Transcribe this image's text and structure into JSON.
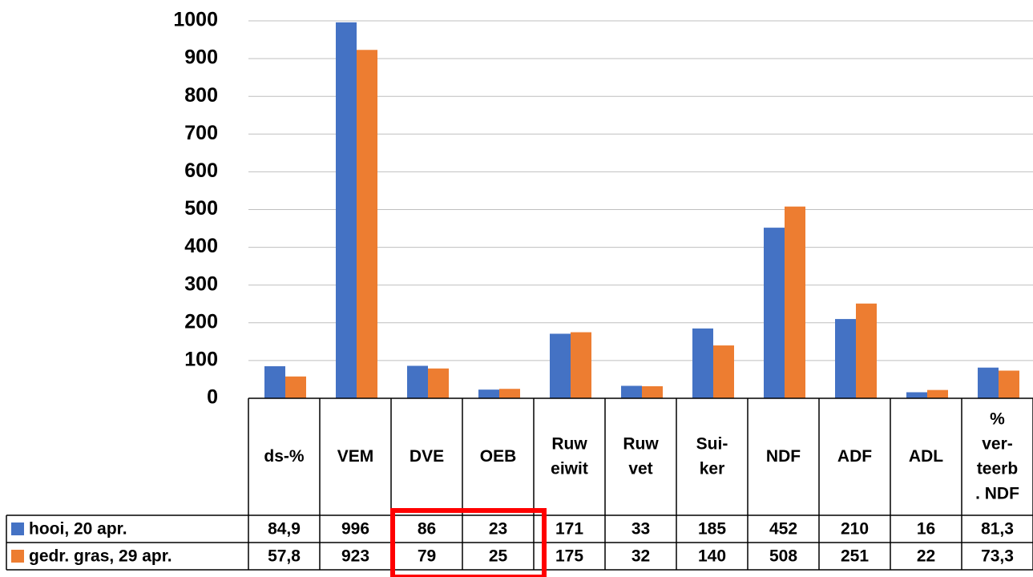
{
  "chart_data": {
    "type": "bar",
    "categories": [
      "ds-%",
      "VEM",
      "DVE",
      "OEB",
      "Ruw\neiwit",
      "Ruw\nvet",
      "Sui-\nker",
      "NDF",
      "ADF",
      "ADL",
      "%\nver-\nteerb\n. NDF"
    ],
    "series": [
      {
        "name": "hooi, 20 apr.",
        "color": "#4472c4",
        "values": [
          84.9,
          996,
          86,
          23,
          171,
          33,
          185,
          452,
          210,
          16,
          81.3
        ],
        "value_labels": [
          "84,9",
          "996",
          "86",
          "23",
          "171",
          "33",
          "185",
          "452",
          "210",
          "16",
          "81,3"
        ]
      },
      {
        "name": "gedr. gras, 29 apr.",
        "color": "#ed7d31",
        "values": [
          57.8,
          923,
          79,
          25,
          175,
          32,
          140,
          508,
          251,
          22,
          73.3
        ],
        "value_labels": [
          "57,8",
          "923",
          "79",
          "25",
          "175",
          "32",
          "140",
          "508",
          "251",
          "22",
          "73,3"
        ]
      }
    ],
    "ylim": [
      0,
      1000
    ],
    "yticks": [
      0,
      100,
      200,
      300,
      400,
      500,
      600,
      700,
      800,
      900,
      1000
    ],
    "grid": true
  }
}
